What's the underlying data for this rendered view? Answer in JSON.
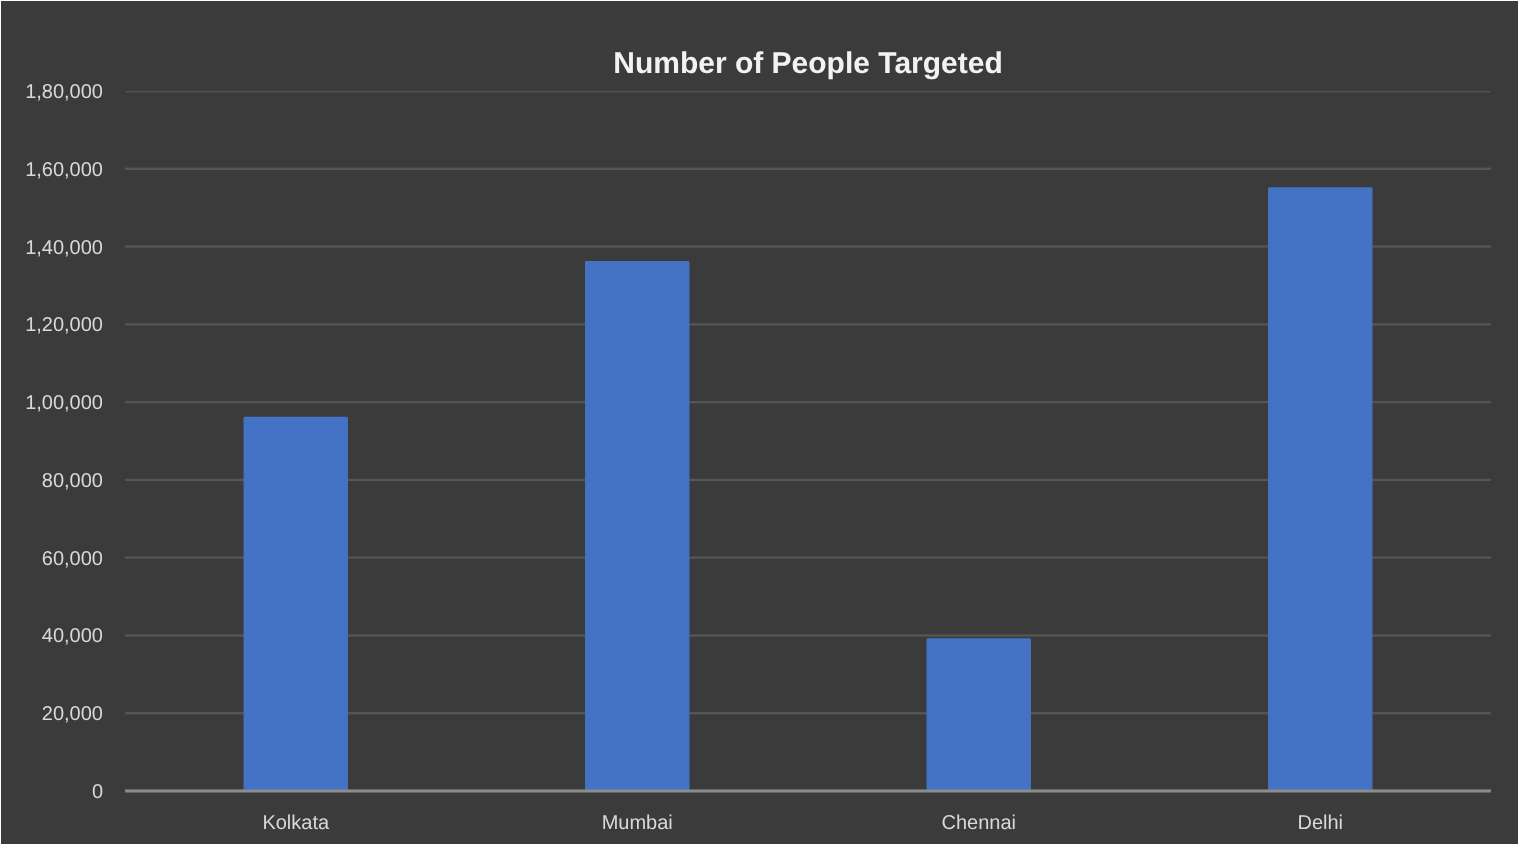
{
  "chart_data": {
    "type": "bar",
    "title": "Number of People Targeted",
    "categories": [
      "Kolkata",
      "Mumbai",
      "Chennai",
      "Delhi"
    ],
    "values": [
      96000,
      136000,
      39000,
      155000
    ],
    "color": "#4472c4",
    "ylim": [
      0,
      180000
    ],
    "yticks": [
      0,
      {
        "value": 20000,
        "label": "20,000"
      },
      {
        "value": 40000,
        "label": "40,000"
      },
      {
        "value": 60000,
        "label": "60,000"
      },
      {
        "value": 80000,
        "label": "80,000"
      },
      {
        "value": 100000,
        "label": "1,00,000"
      },
      {
        "value": 120000,
        "label": "1,20,000"
      },
      {
        "value": 140000,
        "label": "1,40,000"
      },
      {
        "value": 160000,
        "label": "1,60,000"
      },
      {
        "value": 180000,
        "label": "1,80,000"
      }
    ],
    "grid": "y"
  }
}
